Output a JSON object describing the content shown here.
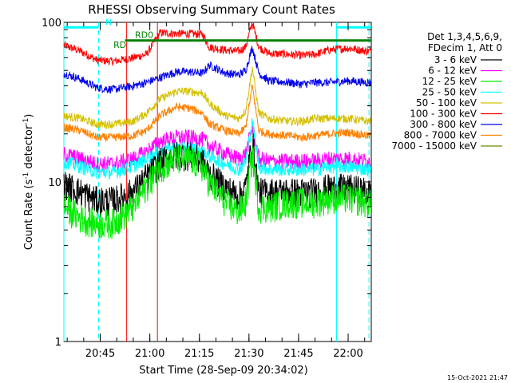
{
  "chart_data": {
    "type": "line",
    "title": "RHESSI Observing Summary Count Rates",
    "xlabel": "Start Time (28-Sep-09 20:34:02)",
    "ylabel_main": "Count Rate (s",
    "ylabel_sup1": "-1",
    "ylabel_mid": " detector",
    "ylabel_sup2": "-1",
    "ylabel_end": ")",
    "yscale": "log",
    "ylim": [
      1,
      100
    ],
    "x_unit": "minutes since 20:34:02",
    "xlim": [
      0,
      93
    ],
    "y_ticks": [
      {
        "value": 100,
        "label": "100"
      },
      {
        "value": 10,
        "label": "10"
      },
      {
        "value": 1,
        "label": "1"
      }
    ],
    "x_ticks": [
      {
        "value": 11,
        "label": "20:45"
      },
      {
        "value": 26,
        "label": "21:00"
      },
      {
        "value": 41,
        "label": "21:15"
      },
      {
        "value": 56,
        "label": "21:30"
      },
      {
        "value": 71,
        "label": "21:45"
      },
      {
        "value": 86,
        "label": "22:00"
      }
    ],
    "legend": {
      "header1": "Det 1,3,4,5,6,9,",
      "header2": "FDecim 1, Att 0",
      "entries": [
        {
          "label": "3 - 6 keV",
          "color": "#000000"
        },
        {
          "label": "6 - 12 keV",
          "color": "#ff00ff"
        },
        {
          "label": "12 - 25 keV",
          "color": "#00ee00"
        },
        {
          "label": "25 - 50 keV",
          "color": "#00ffff"
        },
        {
          "label": "50 - 100 keV",
          "color": "#d4c000"
        },
        {
          "label": "100 - 300 keV",
          "color": "#ff0000"
        },
        {
          "label": "300 - 800 keV",
          "color": "#0000ee"
        },
        {
          "label": "800 - 7000 keV",
          "color": "#ff8000"
        },
        {
          "label": "7000 - 15000 keV",
          "color": "#6b8e00"
        }
      ]
    },
    "series": [
      {
        "name": "Red band",
        "color": "#ff0000",
        "points": [
          [
            0,
            72
          ],
          [
            5,
            66
          ],
          [
            10,
            58
          ],
          [
            15,
            57
          ],
          [
            21,
            60
          ],
          [
            25,
            63
          ],
          [
            29,
            86
          ],
          [
            34,
            85
          ],
          [
            38,
            85
          ],
          [
            42,
            84
          ],
          [
            44,
            70
          ],
          [
            49,
            67
          ],
          [
            53,
            66
          ],
          [
            55,
            70
          ],
          [
            57,
            100
          ],
          [
            59,
            70
          ],
          [
            62,
            64
          ],
          [
            68,
            63
          ],
          [
            72,
            62
          ],
          [
            76,
            63
          ],
          [
            80,
            67
          ],
          [
            86,
            69
          ],
          [
            92,
            66
          ]
        ]
      },
      {
        "name": "Blue band",
        "color": "#0000ee",
        "points": [
          [
            0,
            48
          ],
          [
            5,
            44
          ],
          [
            10,
            39
          ],
          [
            15,
            38
          ],
          [
            21,
            40
          ],
          [
            25,
            42
          ],
          [
            29,
            45
          ],
          [
            34,
            49
          ],
          [
            38,
            49
          ],
          [
            42,
            48
          ],
          [
            44,
            54
          ],
          [
            49,
            48
          ],
          [
            53,
            47
          ],
          [
            55,
            50
          ],
          [
            57,
            70
          ],
          [
            59,
            48
          ],
          [
            62,
            43
          ],
          [
            68,
            42
          ],
          [
            72,
            41
          ],
          [
            76,
            42
          ],
          [
            80,
            42
          ],
          [
            86,
            43
          ],
          [
            92,
            42
          ]
        ]
      },
      {
        "name": "Yellow band",
        "color": "#d4c000",
        "points": [
          [
            0,
            26
          ],
          [
            5,
            25
          ],
          [
            10,
            23
          ],
          [
            15,
            23
          ],
          [
            21,
            24
          ],
          [
            25,
            27
          ],
          [
            29,
            33
          ],
          [
            34,
            37
          ],
          [
            38,
            37
          ],
          [
            42,
            36
          ],
          [
            44,
            31
          ],
          [
            49,
            26
          ],
          [
            53,
            25
          ],
          [
            55,
            28
          ],
          [
            57,
            52
          ],
          [
            59,
            27
          ],
          [
            62,
            25
          ],
          [
            68,
            24
          ],
          [
            72,
            24
          ],
          [
            76,
            25
          ],
          [
            80,
            25
          ],
          [
            86,
            25
          ],
          [
            92,
            24
          ]
        ]
      },
      {
        "name": "Orange band",
        "color": "#ff8000",
        "points": [
          [
            0,
            22
          ],
          [
            5,
            21
          ],
          [
            10,
            19
          ],
          [
            15,
            19
          ],
          [
            21,
            19.5
          ],
          [
            25,
            21
          ],
          [
            29,
            26
          ],
          [
            34,
            29.5
          ],
          [
            38,
            29
          ],
          [
            42,
            27
          ],
          [
            44,
            23
          ],
          [
            49,
            21
          ],
          [
            53,
            20
          ],
          [
            55,
            22
          ],
          [
            57,
            40
          ],
          [
            59,
            21
          ],
          [
            62,
            20
          ],
          [
            68,
            19.5
          ],
          [
            72,
            19
          ],
          [
            76,
            19.5
          ],
          [
            80,
            20
          ],
          [
            86,
            20.5
          ],
          [
            92,
            19.5
          ]
        ]
      },
      {
        "name": "Magenta band",
        "color": "#ff00ff",
        "points": [
          [
            0,
            15
          ],
          [
            5,
            14
          ],
          [
            10,
            13
          ],
          [
            15,
            13
          ],
          [
            21,
            14
          ],
          [
            25,
            15.5
          ],
          [
            29,
            18
          ],
          [
            34,
            19
          ],
          [
            38,
            19
          ],
          [
            42,
            18.5
          ],
          [
            44,
            17
          ],
          [
            49,
            15
          ],
          [
            53,
            14
          ],
          [
            55,
            15
          ],
          [
            57,
            22
          ],
          [
            59,
            14
          ],
          [
            62,
            13.5
          ],
          [
            68,
            13.5
          ],
          [
            72,
            13.5
          ],
          [
            76,
            13.5
          ],
          [
            80,
            14
          ],
          [
            86,
            14
          ],
          [
            92,
            13.5
          ]
        ]
      },
      {
        "name": "Cyan band",
        "color": "#00ffff",
        "points": [
          [
            0,
            13.5
          ],
          [
            5,
            12.5
          ],
          [
            10,
            11.5
          ],
          [
            15,
            11.5
          ],
          [
            21,
            12.5
          ],
          [
            25,
            14
          ],
          [
            29,
            15.5
          ],
          [
            34,
            16.5
          ],
          [
            38,
            16.5
          ],
          [
            42,
            15.5
          ],
          [
            44,
            14.5
          ],
          [
            49,
            13
          ],
          [
            53,
            12
          ],
          [
            55,
            13.5
          ],
          [
            57,
            24
          ],
          [
            59,
            12.5
          ],
          [
            62,
            12
          ],
          [
            68,
            12
          ],
          [
            72,
            12
          ],
          [
            76,
            12
          ],
          [
            80,
            12.5
          ],
          [
            86,
            12.5
          ],
          [
            92,
            12
          ]
        ]
      },
      {
        "name": "Black band",
        "color": "#000000",
        "points": [
          [
            0,
            9.5
          ],
          [
            5,
            8.5
          ],
          [
            10,
            7.5
          ],
          [
            15,
            7.5
          ],
          [
            21,
            8.5
          ],
          [
            25,
            10.5
          ],
          [
            29,
            13
          ],
          [
            34,
            14.5
          ],
          [
            38,
            14.5
          ],
          [
            42,
            13
          ],
          [
            44,
            11
          ],
          [
            49,
            9
          ],
          [
            53,
            8
          ],
          [
            55,
            9
          ],
          [
            57,
            18
          ],
          [
            59,
            8.5
          ],
          [
            62,
            8.5
          ],
          [
            68,
            8.5
          ],
          [
            72,
            8.5
          ],
          [
            76,
            8.5
          ],
          [
            80,
            9
          ],
          [
            86,
            9
          ],
          [
            92,
            8.5
          ]
        ]
      },
      {
        "name": "Green band",
        "color": "#00ee00",
        "points": [
          [
            0,
            7
          ],
          [
            5,
            6
          ],
          [
            10,
            5.5
          ],
          [
            15,
            5.6
          ],
          [
            21,
            7
          ],
          [
            25,
            9.5
          ],
          [
            29,
            12.5
          ],
          [
            34,
            14
          ],
          [
            38,
            14
          ],
          [
            42,
            12.5
          ],
          [
            44,
            10
          ],
          [
            49,
            7.5
          ],
          [
            53,
            6.5
          ],
          [
            55,
            7.5
          ],
          [
            57,
            15
          ],
          [
            59,
            7
          ],
          [
            62,
            7
          ],
          [
            68,
            7.5
          ],
          [
            72,
            7.5
          ],
          [
            76,
            7.5
          ],
          [
            80,
            8
          ],
          [
            86,
            8
          ],
          [
            92,
            7.5
          ]
        ]
      }
    ],
    "spike_bands": [
      {
        "color": "#000000",
        "low": 0.8,
        "high": 1.25
      },
      {
        "color": "#00ee00",
        "low": 0.78,
        "high": 1.22
      },
      {
        "color": "#ff00ff",
        "low": 0.88,
        "high": 1.12
      },
      {
        "color": "#00ffff",
        "low": 0.9,
        "high": 1.1
      }
    ],
    "flags": [
      {
        "label": "N",
        "color": "#00ffff",
        "segments": [
          [
            0,
            10.5
          ],
          [
            82.5,
            93
          ]
        ],
        "y": 93
      },
      {
        "label": "RD0",
        "color": "#008000",
        "segments": [
          [
            18.5,
            93
          ]
        ],
        "y": 77
      },
      {
        "label": "RD",
        "color": "#008000",
        "segments": [],
        "y": 67
      }
    ],
    "vlines": [
      {
        "x": 0,
        "color": "#00ffff",
        "style": "solid"
      },
      {
        "x": 10.5,
        "color": "#00ffff",
        "style": "dashed"
      },
      {
        "x": 82.5,
        "color": "#00ffff",
        "style": "solid"
      },
      {
        "x": 92.3,
        "color": "#00ffff",
        "style": "dashed"
      },
      {
        "x": 19,
        "color": "#ff0000",
        "style": "solid"
      },
      {
        "x": 28.3,
        "color": "#ff0000",
        "style": "solid"
      }
    ],
    "timestamp": "15-Oct-2021 21:47"
  }
}
